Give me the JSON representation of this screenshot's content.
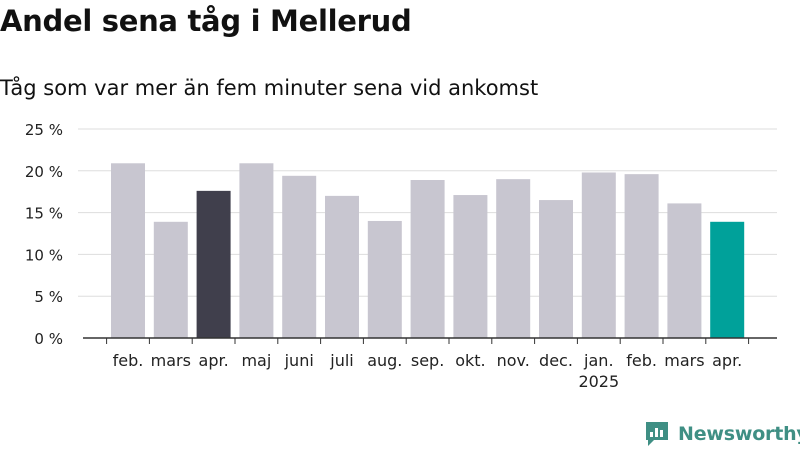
{
  "title": "Andel sena tåg i Mellerud",
  "subtitle": "Tåg som var mer än fem minuter sena vid ankomst",
  "brand": "Newsworthy",
  "colors": {
    "bar_default": "#c8c6d0",
    "bar_highlight_prev": "#403f4c",
    "bar_highlight_current": "#00a19a",
    "grid": "#dddddd",
    "brand": "#3f8f84"
  },
  "chart_data": {
    "type": "bar",
    "categories": [
      "feb.",
      "mars",
      "apr.",
      "maj",
      "juni",
      "juli",
      "aug.",
      "sep.",
      "okt.",
      "nov.",
      "dec.",
      "jan.",
      "feb.",
      "mars",
      "apr."
    ],
    "year_labels": [
      {
        "index": 11,
        "label": "2025"
      }
    ],
    "values": [
      20.9,
      13.9,
      17.6,
      20.9,
      19.4,
      17.0,
      14.0,
      18.9,
      17.1,
      19.0,
      16.5,
      19.8,
      19.6,
      16.1,
      13.9
    ],
    "highlight": {
      "2": "bar_highlight_prev",
      "14": "bar_highlight_current"
    },
    "ylim": [
      0,
      25
    ],
    "yticks": [
      0,
      5,
      10,
      15,
      20,
      25
    ],
    "ytick_labels": [
      "0 %",
      "5 %",
      "10 %",
      "15 %",
      "20 %",
      "25 %"
    ],
    "grid": true,
    "xlabel": "",
    "ylabel": ""
  }
}
